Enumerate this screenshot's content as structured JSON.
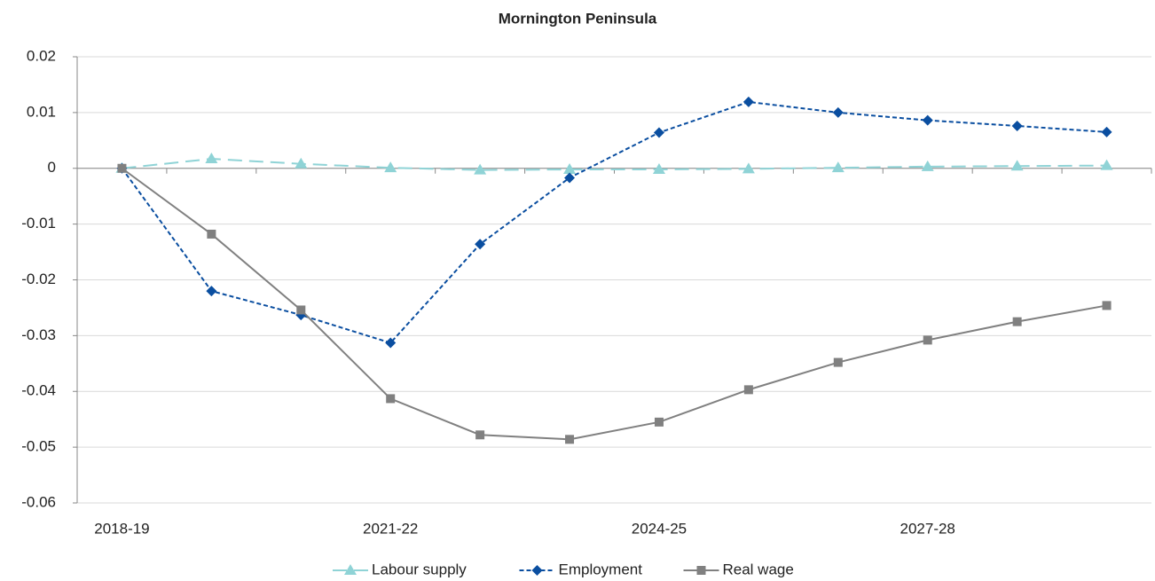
{
  "chart_data": {
    "type": "line",
    "title": "Mornington Peninsula",
    "categories": [
      "2018-19",
      null,
      null,
      "2021-22",
      null,
      null,
      "2024-25",
      null,
      null,
      "2027-28",
      null,
      null
    ],
    "series": [
      {
        "name": "Labour supply",
        "color": "#8fd3d6",
        "marker": "triangle",
        "dash": "long",
        "values": [
          0,
          0.0017,
          0.0008,
          0.0001,
          -0.0003,
          -0.0002,
          -0.0002,
          -0.0001,
          0.0001,
          0.0003,
          0.0004,
          0.0005
        ]
      },
      {
        "name": "Employment",
        "color": "#0a4ea0",
        "marker": "diamond",
        "dash": "short",
        "values": [
          0,
          -0.022,
          -0.0263,
          -0.0313,
          -0.0136,
          -0.0017,
          0.0064,
          0.0119,
          0.01,
          0.0086,
          0.0076,
          0.0065
        ]
      },
      {
        "name": "Real wage",
        "color": "#808080",
        "marker": "square",
        "dash": "solid",
        "values": [
          0,
          -0.0118,
          -0.0254,
          -0.0413,
          -0.0478,
          -0.0486,
          -0.0455,
          -0.0397,
          -0.0348,
          -0.0308,
          -0.0275,
          -0.0246
        ]
      }
    ],
    "ylim": [
      -0.06,
      0.02
    ],
    "yticks": [
      -0.06,
      -0.05,
      -0.04,
      -0.03,
      -0.02,
      -0.01,
      0,
      0.01,
      0.02
    ],
    "grid": true,
    "legend": "bottom"
  }
}
